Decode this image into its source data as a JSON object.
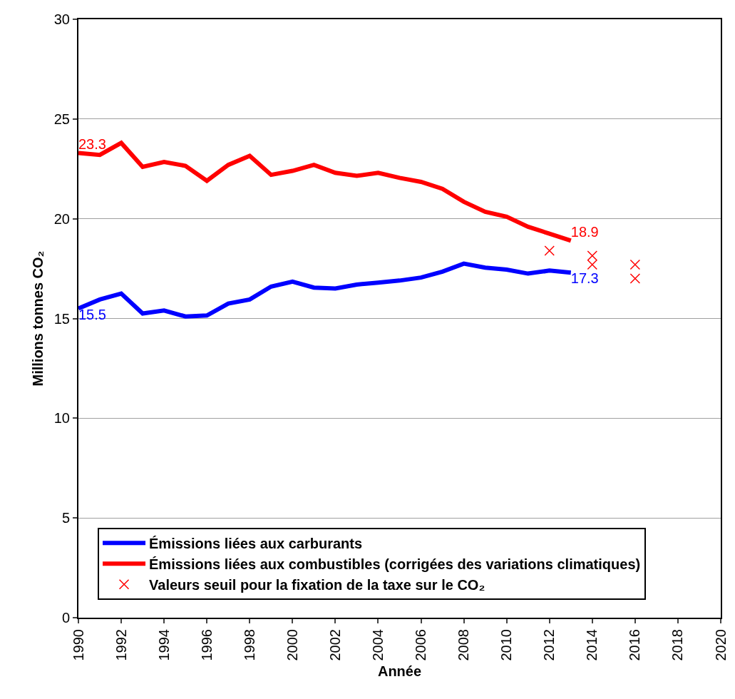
{
  "chart_data": {
    "type": "line",
    "xlabel": "Année",
    "ylabel": "Millions tonnes CO₂",
    "xlim": [
      1990,
      2020
    ],
    "xticks": [
      1990,
      1992,
      1994,
      1996,
      1998,
      2000,
      2002,
      2004,
      2006,
      2008,
      2010,
      2012,
      2014,
      2016,
      2018,
      2020
    ],
    "ylim": [
      0,
      30
    ],
    "yticks": [
      0,
      5,
      10,
      15,
      20,
      25,
      30
    ],
    "grid": "y",
    "legend": "bottom",
    "series": [
      {
        "name": "Émissions liées aux carburants",
        "color": "#0000ff",
        "type": "line",
        "marker": "none",
        "line_style": "solid",
        "x": [
          1990,
          1991,
          1992,
          1993,
          1994,
          1995,
          1996,
          1997,
          1998,
          1999,
          2000,
          2001,
          2002,
          2003,
          2004,
          2005,
          2006,
          2007,
          2008,
          2009,
          2010,
          2011,
          2012,
          2013
        ],
        "values": [
          15.5,
          15.95,
          16.25,
          15.25,
          15.4,
          15.1,
          15.15,
          15.75,
          15.95,
          16.6,
          16.85,
          16.55,
          16.5,
          16.7,
          16.8,
          16.9,
          17.05,
          17.35,
          17.75,
          17.55,
          17.45,
          17.25,
          17.4,
          17.3
        ],
        "value_labels": [
          "15.5",
          null,
          null,
          null,
          null,
          null,
          null,
          null,
          null,
          null,
          null,
          null,
          null,
          null,
          null,
          null,
          null,
          null,
          null,
          null,
          null,
          null,
          null,
          "17.3"
        ]
      },
      {
        "name": "Émissions liées aux combustibles (corrigées des variations climatiques)",
        "color": "#ff0000",
        "type": "line",
        "marker": "none",
        "line_style": "solid",
        "x": [
          1990,
          1991,
          1992,
          1993,
          1994,
          1995,
          1996,
          1997,
          1998,
          1999,
          2000,
          2001,
          2002,
          2003,
          2004,
          2005,
          2006,
          2007,
          2008,
          2009,
          2010,
          2011,
          2012,
          2013
        ],
        "values": [
          23.3,
          23.2,
          23.8,
          22.6,
          22.85,
          22.65,
          21.9,
          22.7,
          23.15,
          22.2,
          22.4,
          22.7,
          22.3,
          22.15,
          22.3,
          22.05,
          21.85,
          21.5,
          20.85,
          20.35,
          20.1,
          19.6,
          19.25,
          18.9
        ],
        "value_labels": [
          "23.3",
          null,
          null,
          null,
          null,
          null,
          null,
          null,
          null,
          null,
          null,
          null,
          null,
          null,
          null,
          null,
          null,
          null,
          null,
          null,
          null,
          null,
          null,
          "18.9"
        ]
      },
      {
        "name": "Valeurs seuil pour la fixation de la taxe sur le CO₂",
        "color": "#ff0000",
        "type": "scatter",
        "marker": "cross",
        "x": [
          2012,
          2014,
          2014,
          2016,
          2016
        ],
        "values": [
          18.4,
          18.15,
          17.7,
          17.7,
          17.0
        ]
      }
    ]
  }
}
